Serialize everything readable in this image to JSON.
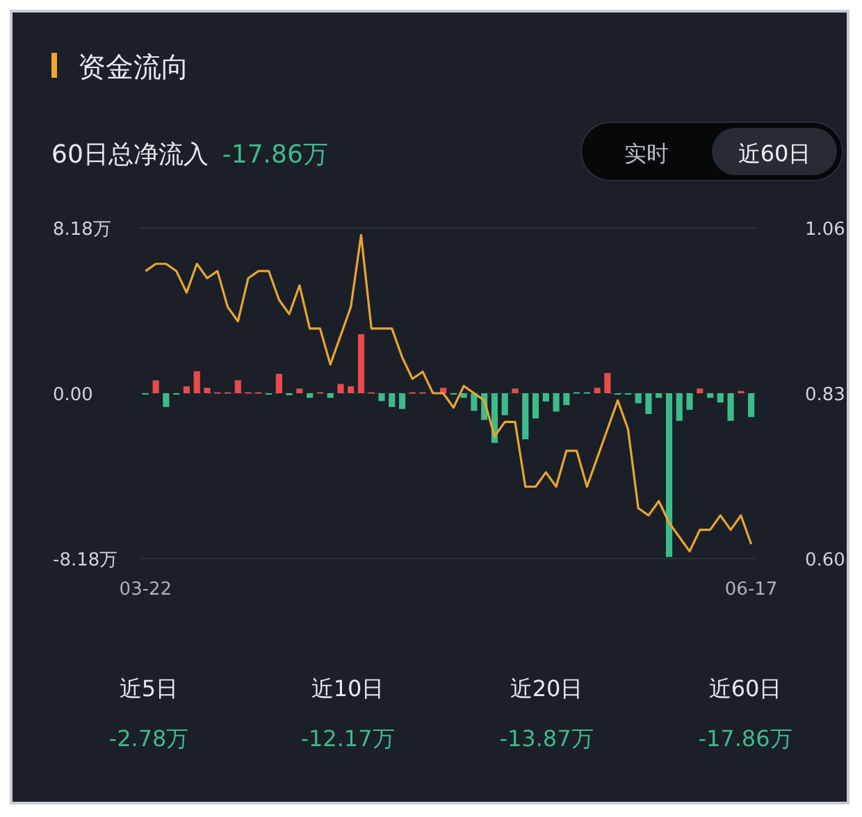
{
  "chart_data": {
    "type": "bar",
    "title": "资金流向",
    "subtitle": "60日总净流入",
    "annotations": [
      "-17.86万",
      "实时",
      "近60日",
      "近5日",
      "-2.78万",
      "近10日",
      "-12.17万",
      "近20日",
      "-13.87万",
      "近60日",
      "-17.86万"
    ],
    "categories": [
      "03-22",
      null,
      null,
      null,
      null,
      null,
      null,
      null,
      null,
      null,
      null,
      null,
      null,
      null,
      null,
      null,
      null,
      null,
      null,
      null,
      null,
      null,
      null,
      null,
      null,
      null,
      null,
      null,
      null,
      null,
      null,
      null,
      null,
      null,
      null,
      null,
      null,
      null,
      null,
      null,
      null,
      null,
      null,
      null,
      null,
      null,
      null,
      null,
      null,
      null,
      null,
      null,
      null,
      null,
      null,
      null,
      null,
      null,
      null,
      "06-17"
    ],
    "ylim": [
      -8.18,
      8.18
    ],
    "yticks": [
      {
        "value": 8.18,
        "label": "8.18万"
      },
      {
        "value": 0,
        "label": "0.00"
      },
      {
        "value": -8.18,
        "label": "-8.18万"
      }
    ],
    "y2lim": [
      0.6,
      1.06
    ],
    "y2ticks": [
      {
        "value": 1.06,
        "label": "1.06"
      },
      {
        "value": 0.83,
        "label": "0.83"
      },
      {
        "value": 0.6,
        "label": "0.60"
      }
    ],
    "grid": "y",
    "series": [
      {
        "values": [
          0,
          0.64,
          -0.68,
          0,
          0.34,
          1.09,
          0.27,
          0.05,
          0.05,
          0.64,
          0.05,
          0.05,
          0,
          0.96,
          -0.1,
          0.23,
          -0.23,
          0.05,
          -0.23,
          0.46,
          0.34,
          2.92,
          0.05,
          -0.39,
          -0.68,
          -0.78,
          0.05,
          0.05,
          null,
          0.27,
          0,
          -0.23,
          -0.87,
          -1.32,
          -2.46,
          -1.09,
          0.23,
          -2.28,
          -1.25,
          -0.41,
          -0.91,
          -0.59,
          0.05,
          0.05,
          0.27,
          1.0,
          0,
          0,
          -0.5,
          -1.03,
          -0.23,
          -8.1,
          -1.37,
          -0.82,
          0.23,
          -0.23,
          -0.46,
          -1.37,
          0.11,
          -1.18
        ],
        "colors": [
          "#3dbb8a",
          "#e84c4c",
          "#3dbb8a",
          "#3dbb8a",
          "#e84c4c",
          "#e84c4c",
          "#e84c4c",
          "#e84c4c",
          "#e84c4c",
          "#e84c4c",
          "#e84c4c",
          "#e84c4c",
          "#3dbb8a",
          "#e84c4c",
          "#3dbb8a",
          "#e84c4c",
          "#3dbb8a",
          "#e84c4c",
          "#3dbb8a",
          "#e84c4c",
          "#e84c4c",
          "#e84c4c",
          "#e84c4c",
          "#3dbb8a",
          "#3dbb8a",
          "#3dbb8a",
          "#e84c4c",
          "#e84c4c",
          null,
          "#e84c4c",
          "#3dbb8a",
          "#3dbb8a",
          "#3dbb8a",
          "#3dbb8a",
          "#3dbb8a",
          "#3dbb8a",
          "#e84c4c",
          "#3dbb8a",
          "#3dbb8a",
          "#3dbb8a",
          "#3dbb8a",
          "#3dbb8a",
          "#3dbb8a",
          "#3dbb8a",
          "#e84c4c",
          "#e84c4c",
          "#3dbb8a",
          "#3dbb8a",
          "#3dbb8a",
          "#3dbb8a",
          "#3dbb8a",
          "#3dbb8a",
          "#3dbb8a",
          "#3dbb8a",
          "#e84c4c",
          "#3dbb8a",
          "#3dbb8a",
          "#3dbb8a",
          "#e84c4c",
          "#3dbb8a"
        ]
      },
      {
        "type": "line",
        "axis": "y2",
        "color": "#e8a630",
        "values": [
          1.0,
          1.01,
          1.01,
          1.0,
          0.97,
          1.01,
          0.99,
          1.0,
          0.95,
          0.93,
          0.99,
          1.0,
          1.0,
          0.96,
          0.94,
          0.98,
          0.92,
          0.92,
          0.87,
          0.91,
          0.95,
          1.05,
          0.92,
          0.92,
          0.92,
          0.88,
          0.85,
          0.86,
          0.83,
          0.83,
          0.81,
          0.84,
          0.83,
          0.82,
          0.77,
          0.79,
          0.79,
          0.7,
          0.7,
          0.72,
          0.7,
          0.75,
          0.75,
          0.7,
          0.74,
          0.78,
          0.82,
          0.78,
          0.67,
          0.66,
          0.68,
          0.65,
          0.63,
          0.61,
          0.64,
          0.64,
          0.66,
          0.64,
          0.66,
          0.62
        ]
      }
    ]
  }
}
